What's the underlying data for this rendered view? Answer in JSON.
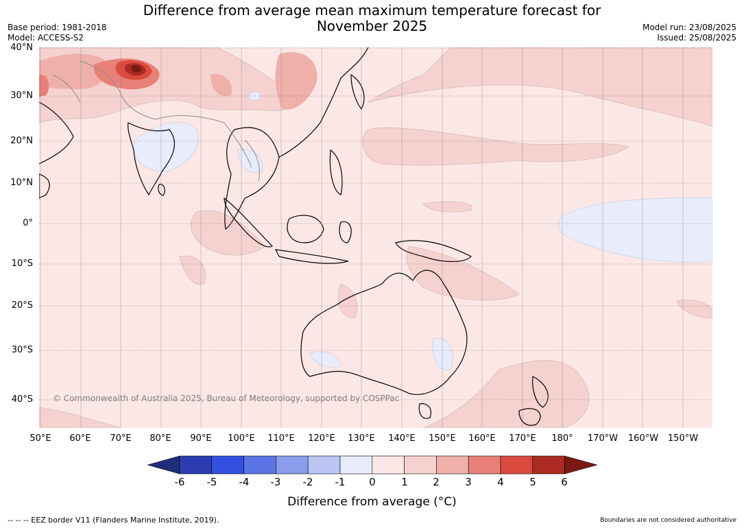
{
  "title_line1": "Difference from average mean maximum temperature forecast for",
  "title_line2": "November 2025",
  "meta_left": [
    "Base period: 1981-2018",
    "Model: ACCESS-S2"
  ],
  "meta_right": [
    "Model run: 23/08/2025",
    "Issued: 25/08/2025"
  ],
  "lat_labels": [
    "40°N",
    "30°N",
    "20°N",
    "10°N",
    "0°",
    "10°S",
    "20°S",
    "30°S",
    "40°S"
  ],
  "lon_labels": [
    "50°E",
    "60°E",
    "70°E",
    "80°E",
    "90°E",
    "100°E",
    "110°E",
    "120°E",
    "130°E",
    "140°E",
    "150°E",
    "160°E",
    "170°E",
    "180°",
    "170°W",
    "160°W",
    "150°W"
  ],
  "copyright": "© Commonwealth of Australia 2025, Bureau of Meteorology, supported by COSPPac",
  "colorbar": {
    "ticks": [
      "-6",
      "-5",
      "-4",
      "-3",
      "-2",
      "-1",
      "0",
      "1",
      "2",
      "3",
      "4",
      "5",
      "6"
    ],
    "colors": [
      "#1f2e7a",
      "#2a3cb0",
      "#3351e0",
      "#5b75e6",
      "#8a9cec",
      "#bcc6f4",
      "#e8ecfb",
      "#fbe8e6",
      "#f5d2cf",
      "#efb0aa",
      "#e98078",
      "#dc4a3e",
      "#ab2a23",
      "#7a1a14"
    ],
    "label": "Difference from average (°C)"
  },
  "footer_left": "-- -- -- EEZ border V11 (Flanders Marine Institute, 2019).",
  "footer_right": "Boundaries are not considered authoritative"
}
